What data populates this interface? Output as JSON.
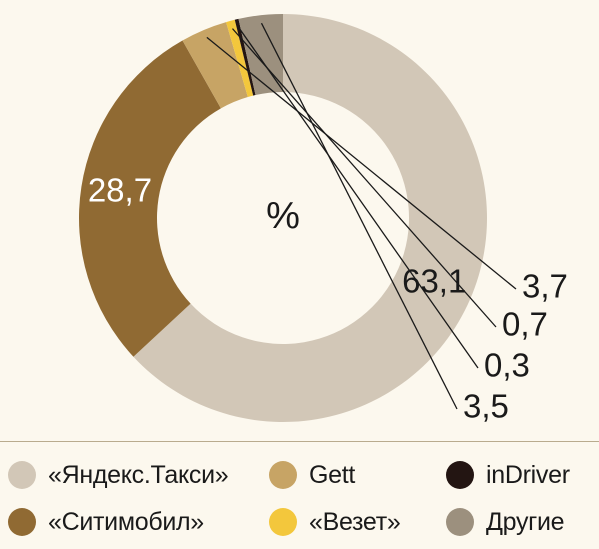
{
  "chart_data": {
    "type": "pie",
    "center_label": "%",
    "categories": [
      "«Яндекс.Такси»",
      "«Ситимобил»",
      "Gett",
      "«Везет»",
      "inDriver",
      "Другие"
    ],
    "values": [
      63.1,
      28.7,
      3.7,
      0.7,
      0.3,
      3.5
    ],
    "value_labels": [
      "63,1",
      "28,7",
      "3,7",
      "0,7",
      "0,3",
      "3,5"
    ],
    "colors": [
      "#d2c7b7",
      "#906a33",
      "#c7a465",
      "#f3c73c",
      "#231512",
      "#9c907e"
    ]
  },
  "legend": [
    {
      "label": "«Яндекс.Такси»",
      "color": "#d2c7b7"
    },
    {
      "label": "Gett",
      "color": "#c7a465"
    },
    {
      "label": "inDriver",
      "color": "#231512"
    },
    {
      "label": "«Ситимобил»",
      "color": "#906a33"
    },
    {
      "label": "«Везет»",
      "color": "#f3c73c"
    },
    {
      "label": "Другие",
      "color": "#9c907e"
    }
  ]
}
